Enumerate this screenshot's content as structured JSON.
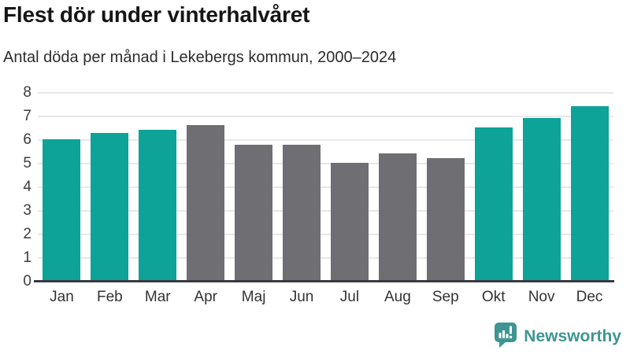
{
  "header": {
    "title": "Flest dör under vinterhalvåret",
    "subtitle": "Antal döda per månad i Lekebergs kommun, 2000–2024"
  },
  "chart_data": {
    "type": "bar",
    "title": "Flest dör under vinterhalvåret",
    "subtitle": "Antal döda per månad i Lekebergs kommun, 2000–2024",
    "categories": [
      "Jan",
      "Feb",
      "Mar",
      "Apr",
      "Maj",
      "Jun",
      "Jul",
      "Aug",
      "Sep",
      "Okt",
      "Nov",
      "Dec"
    ],
    "values": [
      6.05,
      6.3,
      6.45,
      6.65,
      5.8,
      5.8,
      5.05,
      5.45,
      5.25,
      6.55,
      6.95,
      7.45
    ],
    "bar_colors": [
      "highlight",
      "highlight",
      "highlight",
      "muted",
      "muted",
      "muted",
      "muted",
      "muted",
      "muted",
      "highlight",
      "highlight",
      "highlight"
    ],
    "xlabel": "",
    "ylabel": "",
    "ylim": [
      0,
      8
    ],
    "yticks": [
      0,
      1,
      2,
      3,
      4,
      5,
      6,
      7,
      8
    ],
    "grid": true,
    "legend": false,
    "colors": {
      "highlight": "#0da398",
      "muted": "#6e6e73",
      "gridline": "#e8e8ea",
      "axis_line": "#3a3a40",
      "tick_label": "#3c3c3c"
    }
  },
  "footer": {
    "brand": "Newsworthy",
    "brand_color": "#3f9591",
    "logo_icon": "newsworthy-speech-bubble-chart-icon"
  }
}
